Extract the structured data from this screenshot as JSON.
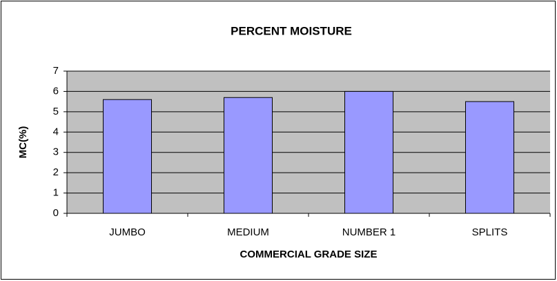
{
  "chart_data": {
    "type": "bar",
    "title": "PERCENT MOISTURE",
    "x_label": "COMMERCIAL GRADE SIZE",
    "y_label": "MC(%)",
    "categories": [
      "JUMBO",
      "MEDIUM",
      "NUMBER 1",
      "SPLITS"
    ],
    "values": [
      5.6,
      5.7,
      6.0,
      5.5
    ],
    "color": "#9999ff",
    "ylim": [
      0,
      7
    ],
    "yticks": [
      0,
      1,
      2,
      3,
      4,
      5,
      6,
      7
    ],
    "grid": true
  }
}
